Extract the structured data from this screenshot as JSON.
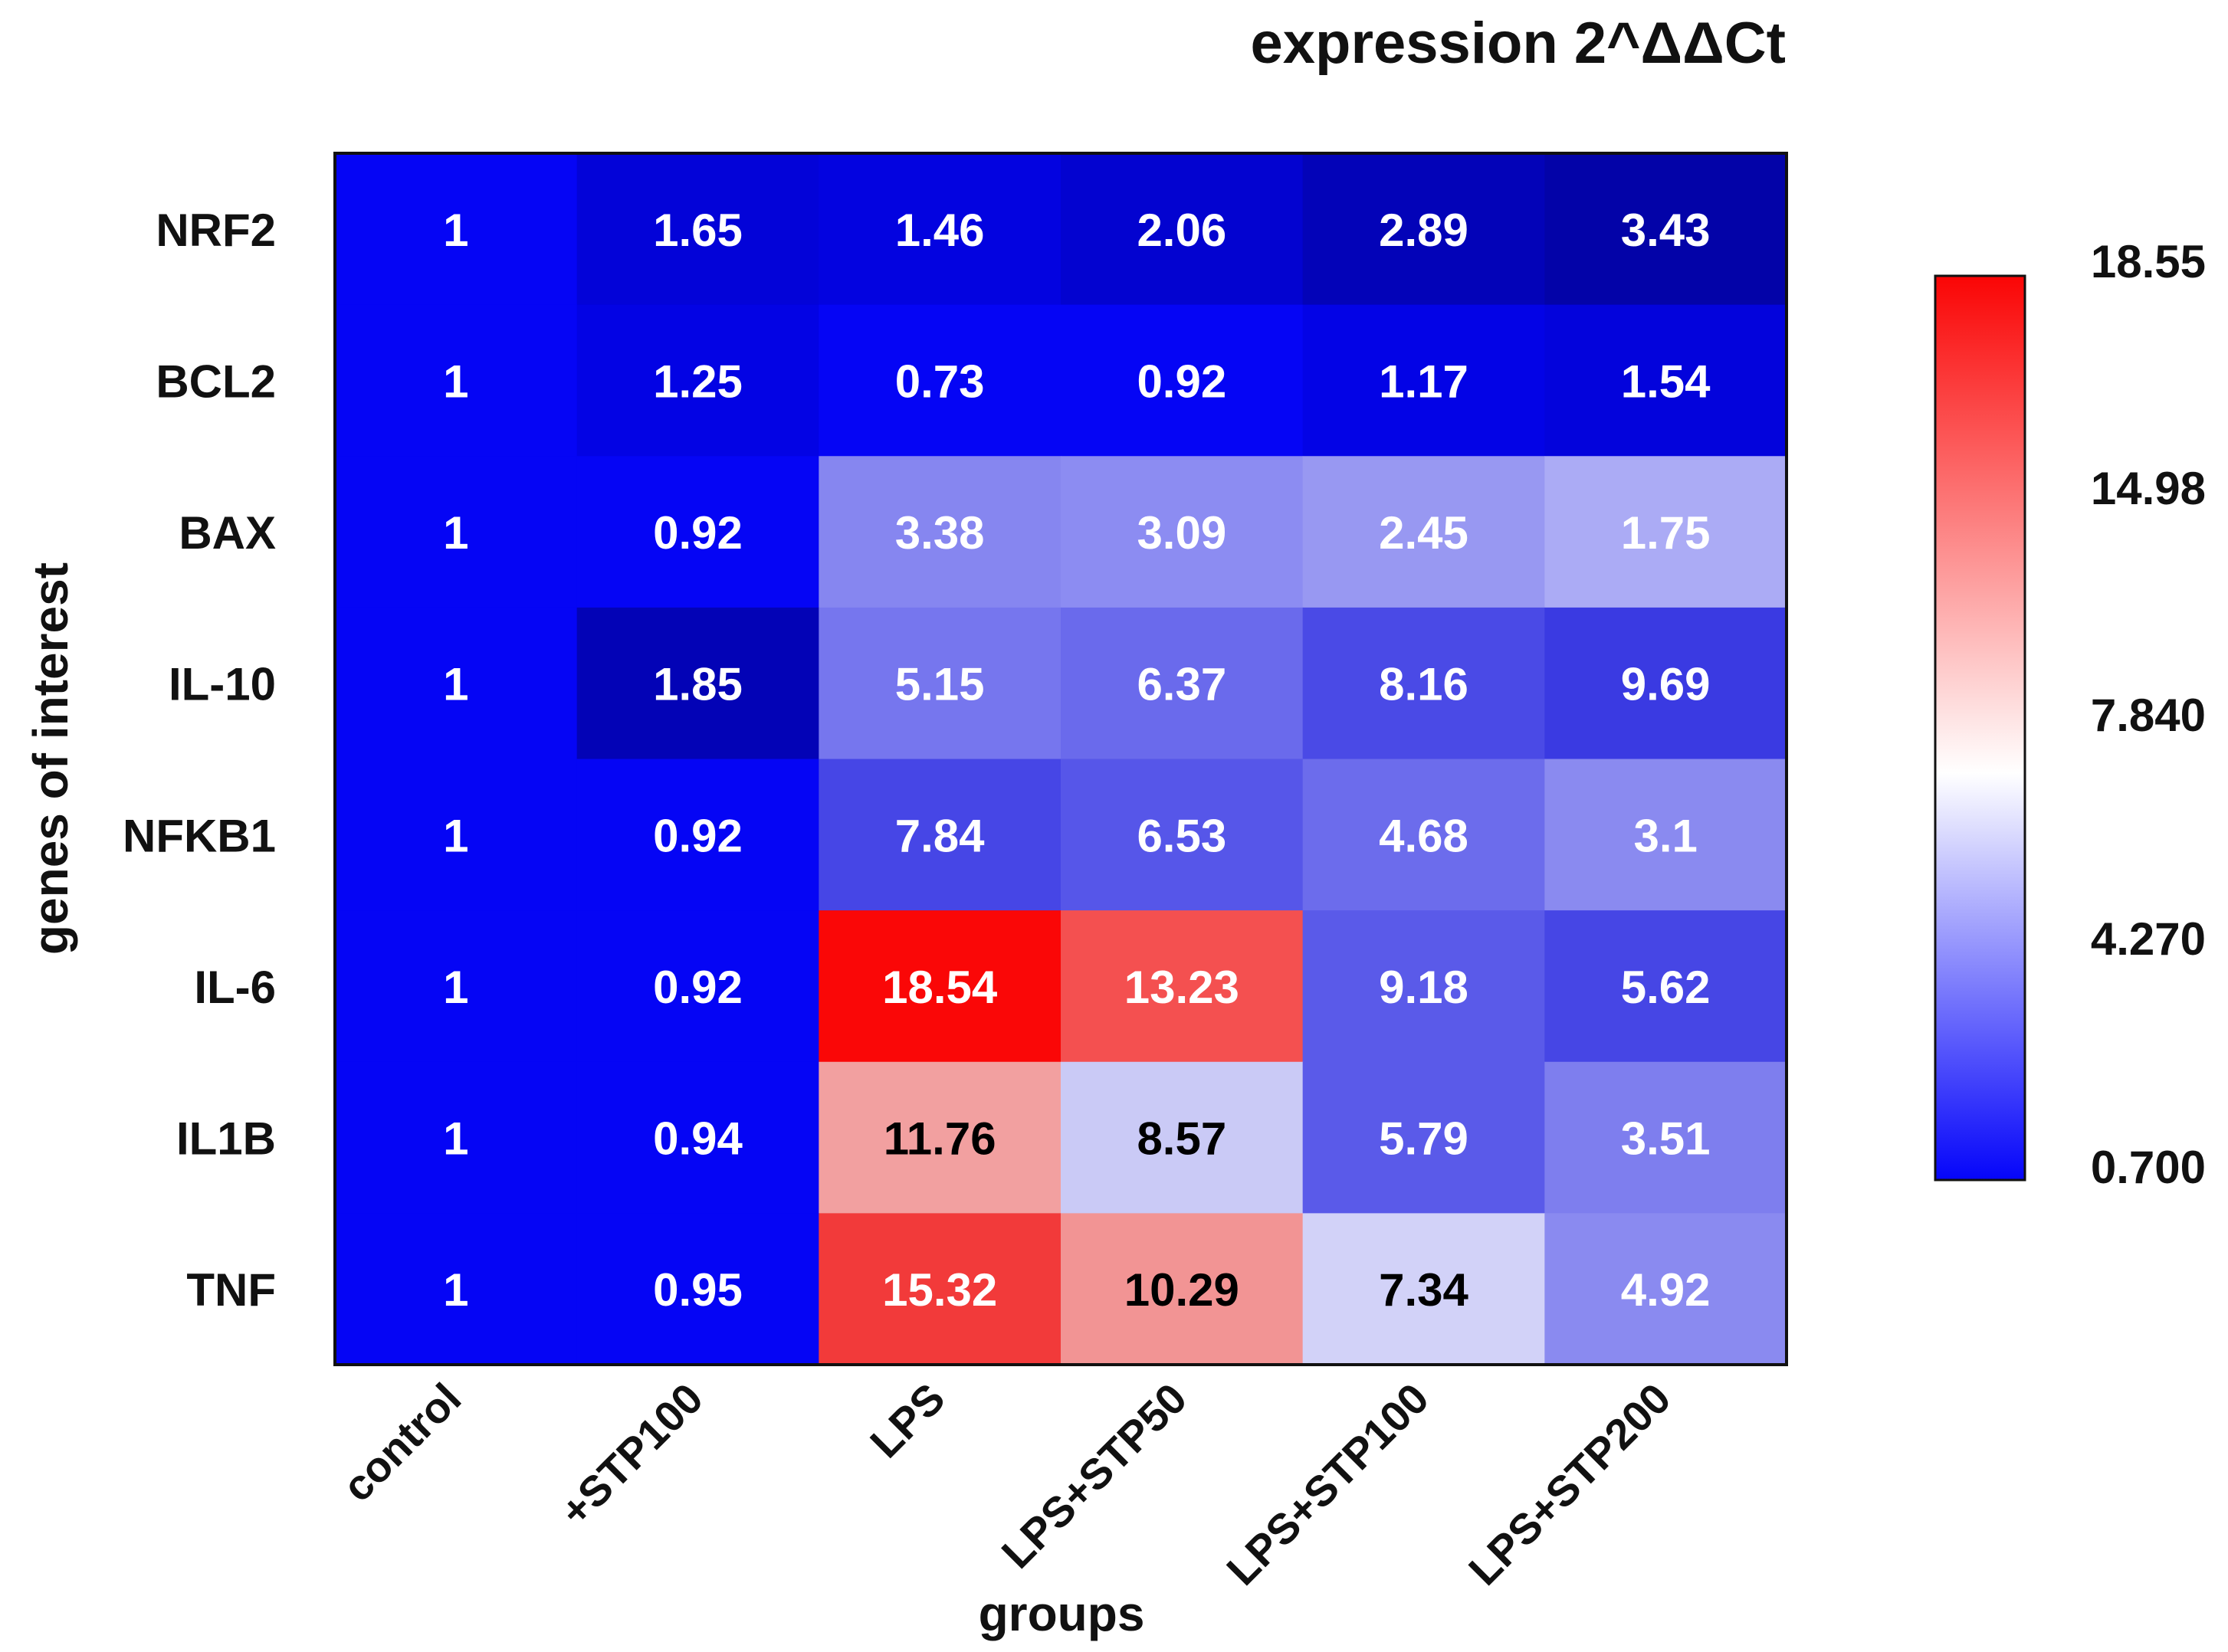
{
  "chart_data": {
    "type": "heatmap",
    "title": "expression 2^ΔΔCt",
    "xlabel": "groups",
    "ylabel": "genes of interest",
    "columns": [
      "control",
      "+STP100",
      "LPS",
      "LPS+STP50",
      "LPS+STP100",
      "LPS+STP200"
    ],
    "rows": [
      "NRF2",
      "BCL2",
      "BAX",
      "IL-10",
      "NFKB1",
      "IL-6",
      "IL1B",
      "TNF"
    ],
    "values": [
      [
        "1",
        "1.65",
        "1.46",
        "2.06",
        "2.89",
        "3.43"
      ],
      [
        "1",
        "1.25",
        "0.73",
        "0.92",
        "1.17",
        "1.54"
      ],
      [
        "1",
        "0.92",
        "3.38",
        "3.09",
        "2.45",
        "1.75"
      ],
      [
        "1",
        "1.85",
        "5.15",
        "6.37",
        "8.16",
        "9.69"
      ],
      [
        "1",
        "0.92",
        "7.84",
        "6.53",
        "4.68",
        "3.1"
      ],
      [
        "1",
        "0.92",
        "18.54",
        "13.23",
        "9.18",
        "5.62"
      ],
      [
        "1",
        "0.94",
        "11.76",
        "8.57",
        "5.79",
        "3.51"
      ],
      [
        "1",
        "0.95",
        "15.32",
        "10.29",
        "7.34",
        "4.92"
      ]
    ],
    "cell_colors": [
      [
        "#0505f5",
        "#0303d8",
        "#0303e0",
        "#0303d0",
        "#0303b8",
        "#0303a8"
      ],
      [
        "#0505f5",
        "#0303e4",
        "#0505f5",
        "#0505f5",
        "#0303e6",
        "#0303dc"
      ],
      [
        "#0505f5",
        "#0505f5",
        "#8686f0",
        "#8c8cf2",
        "#9898f2",
        "#ababf5"
      ],
      [
        "#0505f5",
        "#0303b6",
        "#7676ee",
        "#6a6aec",
        "#4a4ae6",
        "#3a3ae2"
      ],
      [
        "#0505f5",
        "#0505f5",
        "#4646e6",
        "#5656e9",
        "#6c6cec",
        "#8a8af0"
      ],
      [
        "#0505f5",
        "#0505f5",
        "#fa0707",
        "#f45050",
        "#5a5ae9",
        "#4646e5"
      ],
      [
        "#0505f5",
        "#0505f5",
        "#f2a0a0",
        "#cacaf6",
        "#5a5ae9",
        "#7e7eee"
      ],
      [
        "#0505f5",
        "#0505f5",
        "#f23a3a",
        "#f29494",
        "#d2d2f8",
        "#8a8af0"
      ]
    ],
    "text_colors": [
      [
        "#ffffff",
        "#ffffff",
        "#ffffff",
        "#ffffff",
        "#ffffff",
        "#ffffff"
      ],
      [
        "#ffffff",
        "#ffffff",
        "#ffffff",
        "#ffffff",
        "#ffffff",
        "#ffffff"
      ],
      [
        "#ffffff",
        "#ffffff",
        "#ffffff",
        "#ffffff",
        "#ffffff",
        "#ffffff"
      ],
      [
        "#ffffff",
        "#ffffff",
        "#ffffff",
        "#ffffff",
        "#ffffff",
        "#ffffff"
      ],
      [
        "#ffffff",
        "#ffffff",
        "#ffffff",
        "#ffffff",
        "#ffffff",
        "#ffffff"
      ],
      [
        "#ffffff",
        "#ffffff",
        "#ffffff",
        "#ffffff",
        "#ffffff",
        "#ffffff"
      ],
      [
        "#ffffff",
        "#ffffff",
        "#000000",
        "#000000",
        "#ffffff",
        "#ffffff"
      ],
      [
        "#ffffff",
        "#ffffff",
        "#ffffff",
        "#000000",
        "#000000",
        "#ffffff"
      ]
    ],
    "colorbar": {
      "ticks": [
        "18.55",
        "14.98",
        "7.840",
        "4.270",
        "0.700"
      ],
      "colors": [
        "#fa0505",
        "#ffffff",
        "#0505fa"
      ]
    }
  }
}
